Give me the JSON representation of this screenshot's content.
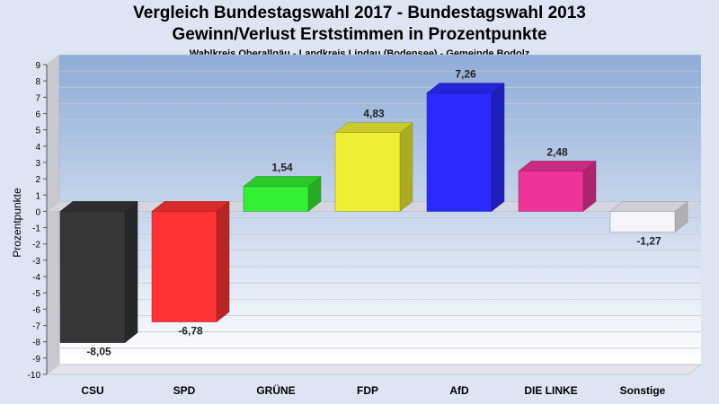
{
  "chart_data": {
    "type": "bar",
    "title": "Vergleich Bundestagswahl 2017 - Bundestagswahl 2013",
    "subtitle": "Gewinn/Verlust Erststimmen in Prozentpunkte",
    "subsubtitle": "Wahlkreis Oberallgäu - Landkreis Lindau (Bodensee) - Gemeinde Bodolz",
    "xlabel": "",
    "ylabel": "Prozentpunkte",
    "ylim": [
      -10,
      9
    ],
    "yticks": [
      9,
      8,
      7,
      6,
      5,
      4,
      3,
      2,
      1,
      0,
      -1,
      -2,
      -3,
      -4,
      -5,
      -6,
      -7,
      -8,
      -9,
      -10
    ],
    "grid": true,
    "categories": [
      "CSU",
      "SPD",
      "GRÜNE",
      "FDP",
      "AfD",
      "DIE LINKE",
      "Sonstige"
    ],
    "values": [
      -8.05,
      -6.78,
      1.54,
      4.83,
      7.26,
      2.48,
      -1.27
    ],
    "value_labels": [
      "-8,05",
      "-6,78",
      "1,54",
      "4,83",
      "7,26",
      "2,48",
      "-1,27"
    ],
    "colors": [
      "#343638",
      "#ff3333",
      "#33ee33",
      "#eeee33",
      "#2a2aff",
      "#ee3399",
      "#f4f4fa"
    ]
  }
}
